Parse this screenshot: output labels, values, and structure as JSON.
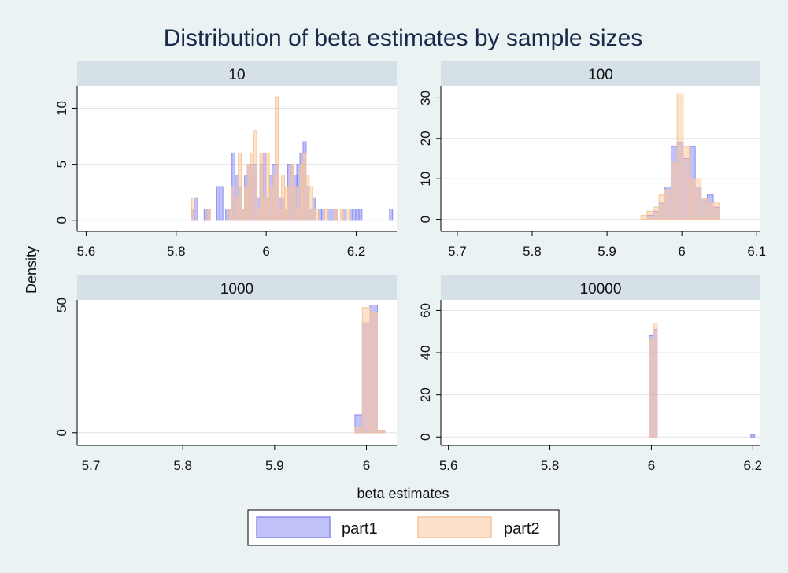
{
  "chart_data": {
    "type": "histogram",
    "title": "Distribution of beta estimates by sample sizes",
    "xlabel": "beta estimates",
    "ylabel": "Density",
    "grid": true,
    "legend": {
      "position": "bottom-center",
      "entries": [
        {
          "name": "part1",
          "color": "#7b7bf0"
        },
        {
          "name": "part2",
          "color": "#fbc89a"
        }
      ]
    },
    "series_names": [
      "part1",
      "part2"
    ],
    "colors": {
      "part1_fill": "rgba(120,120,245,0.45)",
      "part1_stroke": "#8a8af2",
      "part2_fill": "rgba(252,196,150,0.5)",
      "part2_stroke": "#f7c49a",
      "strip": "#d5e1e6",
      "grid": "#e3e3e3",
      "background": "#eaf2f3"
    },
    "panels": [
      {
        "label": "10",
        "xlim": [
          5.58,
          6.29
        ],
        "ylim": [
          -1,
          12
        ],
        "xticks": [
          5.6,
          5.8,
          6,
          6.2
        ],
        "xtick_labels": [
          "5.6",
          "5.8",
          "6",
          "6.2"
        ],
        "yticks": [
          0,
          5,
          10
        ],
        "ytick_labels": [
          "0",
          "5",
          "10"
        ],
        "bin_width": 0.0068,
        "series": [
          {
            "name": "part1",
            "bins": [
              [
                5.834,
                1
              ],
              [
                5.841,
                2
              ],
              [
                5.862,
                1
              ],
              [
                5.869,
                1
              ],
              [
                5.89,
                3
              ],
              [
                5.897,
                3
              ],
              [
                5.91,
                1
              ],
              [
                5.917,
                1
              ],
              [
                5.924,
                6
              ],
              [
                5.931,
                4
              ],
              [
                5.938,
                3
              ],
              [
                5.945,
                1
              ],
              [
                5.952,
                4
              ],
              [
                5.958,
                5
              ],
              [
                5.965,
                5
              ],
              [
                5.972,
                5
              ],
              [
                5.979,
                2
              ],
              [
                5.986,
                5
              ],
              [
                5.993,
                6
              ],
              [
                6.0,
                2
              ],
              [
                6.007,
                4
              ],
              [
                6.013,
                5
              ],
              [
                6.02,
                5
              ],
              [
                6.027,
                2
              ],
              [
                6.034,
                2
              ],
              [
                6.041,
                1
              ],
              [
                6.048,
                5
              ],
              [
                6.055,
                5
              ],
              [
                6.062,
                4
              ],
              [
                6.068,
                5
              ],
              [
                6.075,
                6
              ],
              [
                6.082,
                7
              ],
              [
                6.089,
                3
              ],
              [
                6.096,
                1
              ],
              [
                6.103,
                2
              ],
              [
                6.116,
                1
              ],
              [
                6.123,
                1
              ],
              [
                6.137,
                1
              ],
              [
                6.144,
                1
              ],
              [
                6.151,
                1
              ],
              [
                6.171,
                1
              ],
              [
                6.185,
                1
              ],
              [
                6.192,
                1
              ],
              [
                6.199,
                1
              ],
              [
                6.206,
                1
              ],
              [
                6.274,
                1
              ]
            ]
          },
          {
            "name": "part2",
            "bins": [
              [
                5.834,
                2
              ],
              [
                5.869,
                1
              ],
              [
                5.917,
                1
              ],
              [
                5.924,
                3
              ],
              [
                5.931,
                2
              ],
              [
                5.938,
                6
              ],
              [
                5.945,
                1
              ],
              [
                5.952,
                3
              ],
              [
                5.958,
                5
              ],
              [
                5.965,
                6
              ],
              [
                5.972,
                8
              ],
              [
                5.979,
                1
              ],
              [
                5.986,
                6
              ],
              [
                5.993,
                2
              ],
              [
                6.0,
                6
              ],
              [
                6.007,
                3
              ],
              [
                6.013,
                4
              ],
              [
                6.02,
                11
              ],
              [
                6.027,
                1
              ],
              [
                6.034,
                4
              ],
              [
                6.041,
                3
              ],
              [
                6.048,
                3
              ],
              [
                6.055,
                5
              ],
              [
                6.062,
                3
              ],
              [
                6.068,
                1
              ],
              [
                6.075,
                5
              ],
              [
                6.082,
                6
              ],
              [
                6.089,
                4
              ],
              [
                6.096,
                3
              ],
              [
                6.103,
                1
              ],
              [
                6.11,
                1
              ],
              [
                6.13,
                1
              ],
              [
                6.151,
                1
              ],
              [
                6.165,
                1
              ],
              [
                6.178,
                1
              ]
            ]
          }
        ]
      },
      {
        "label": "100",
        "xlim": [
          5.678,
          6.105
        ],
        "ylim": [
          -3,
          33
        ],
        "xticks": [
          5.7,
          5.8,
          5.9,
          6,
          6.1
        ],
        "xtick_labels": [
          "5.7",
          "5.8",
          "5.9",
          "6",
          "6.1"
        ],
        "yticks": [
          0,
          10,
          20,
          30
        ],
        "ytick_labels": [
          "0",
          "10",
          "20",
          "30"
        ],
        "bin_width": 0.00805,
        "series": [
          {
            "name": "part1",
            "bins": [
              [
                5.9534,
                1
              ],
              [
                5.9615,
                2
              ],
              [
                5.9695,
                4
              ],
              [
                5.9776,
                8
              ],
              [
                5.9856,
                18
              ],
              [
                5.9937,
                19
              ],
              [
                6.0017,
                15
              ],
              [
                6.0098,
                18
              ],
              [
                6.0178,
                8
              ],
              [
                6.0259,
                5
              ],
              [
                6.0339,
                6
              ],
              [
                6.042,
                3
              ]
            ]
          },
          {
            "name": "part2",
            "bins": [
              [
                5.9454,
                1
              ],
              [
                5.9534,
                2
              ],
              [
                5.9615,
                3
              ],
              [
                5.9695,
                6
              ],
              [
                5.9776,
                7
              ],
              [
                5.9856,
                14
              ],
              [
                5.9937,
                31
              ],
              [
                6.0017,
                18
              ],
              [
                6.0098,
                10
              ],
              [
                6.0178,
                10
              ],
              [
                6.0259,
                5
              ],
              [
                6.0339,
                4
              ],
              [
                6.042,
                4
              ]
            ]
          }
        ]
      },
      {
        "label": "1000",
        "xlim": [
          5.685,
          6.033
        ],
        "ylim": [
          -5,
          52
        ],
        "xticks": [
          5.7,
          5.8,
          5.9,
          6
        ],
        "xtick_labels": [
          "5.7",
          "5.8",
          "5.9",
          "6"
        ],
        "yticks": [
          0,
          50
        ],
        "ytick_labels": [
          "0",
          "50"
        ],
        "bin_width": 0.00815,
        "series": [
          {
            "name": "part1",
            "bins": [
              [
                5.9875,
                7
              ],
              [
                5.9956,
                43
              ],
              [
                6.0038,
                50
              ],
              [
                6.0119,
                1
              ]
            ]
          },
          {
            "name": "part2",
            "bins": [
              [
                5.9875,
                2
              ],
              [
                5.9956,
                49
              ],
              [
                6.0038,
                47
              ],
              [
                6.0119,
                1
              ]
            ]
          }
        ]
      },
      {
        "label": "10000",
        "xlim": [
          5.585,
          6.215
        ],
        "ylim": [
          -4,
          65
        ],
        "xticks": [
          5.6,
          5.8,
          6,
          6.2
        ],
        "xtick_labels": [
          "5.6",
          "5.8",
          "6",
          "6.2"
        ],
        "yticks": [
          0,
          20,
          40,
          60
        ],
        "ytick_labels": [
          "0",
          "20",
          "40",
          "60"
        ],
        "bin_width": 0.0076,
        "series": [
          {
            "name": "part1",
            "bins": [
              [
                5.9962,
                48
              ],
              [
                6.0038,
                51
              ],
              [
                6.196,
                1
              ]
            ]
          },
          {
            "name": "part2",
            "bins": [
              [
                5.9962,
                46
              ],
              [
                6.0038,
                54
              ]
            ]
          }
        ]
      }
    ]
  }
}
